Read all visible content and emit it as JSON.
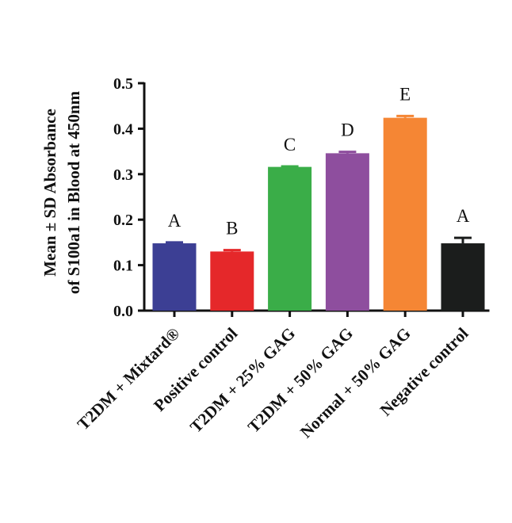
{
  "chart_data": {
    "type": "bar",
    "ylabel_line1": "Mean ± SD Absorbance",
    "ylabel_line2": "of S100a1 in Blood at 450nm",
    "ylim": [
      0.0,
      0.5
    ],
    "yticks": [
      "0.0",
      "0.1",
      "0.2",
      "0.3",
      "0.4",
      "0.5"
    ],
    "grid": false,
    "categories": [
      "T2DM + Mixtard®",
      "Positive control",
      "T2DM + 25% GAG",
      "T2DM + 50% GAG",
      "Normal + 50% GAG",
      "Negative control"
    ],
    "values": [
      0.148,
      0.13,
      0.316,
      0.346,
      0.424,
      0.148
    ],
    "errors": [
      0.002,
      0.003,
      0.001,
      0.003,
      0.004,
      0.012
    ],
    "significance_letters": [
      "A",
      "B",
      "C",
      "D",
      "E",
      "A"
    ],
    "colors": [
      "#3c3f94",
      "#e5282a",
      "#3aad48",
      "#8e4e9e",
      "#f58634",
      "#1b1d1c"
    ]
  }
}
